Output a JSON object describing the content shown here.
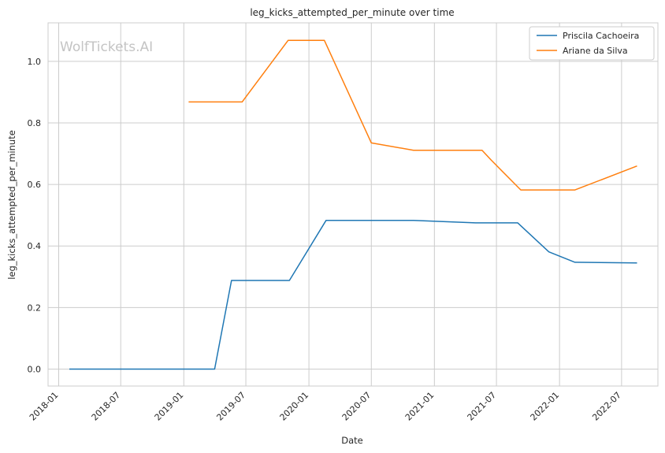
{
  "chart_data": {
    "type": "line",
    "title": "leg_kicks_attempted_per_minute over time",
    "xlabel": "Date",
    "ylabel": "leg_kicks_attempted_per_minute",
    "watermark": "WolfTickets.AI",
    "x_ticks": [
      "2018-01",
      "2018-07",
      "2019-01",
      "2019-07",
      "2020-01",
      "2020-07",
      "2021-01",
      "2021-07",
      "2022-01",
      "2022-07"
    ],
    "y_ticks": [
      "0.0",
      "0.2",
      "0.4",
      "0.6",
      "0.8",
      "1.0"
    ],
    "xlim": [
      "2017-12-01",
      "2022-10-15"
    ],
    "ylim": [
      -0.055,
      1.125
    ],
    "grid": true,
    "legend_position": "top-right",
    "series": [
      {
        "name": "Priscila Cachoeira",
        "color": "#1f77b4",
        "points": [
          [
            "2018-02-01",
            0.0
          ],
          [
            "2019-04-01",
            0.0
          ],
          [
            "2019-05-20",
            0.288
          ],
          [
            "2019-11-05",
            0.288
          ],
          [
            "2020-02-20",
            0.483
          ],
          [
            "2020-11-01",
            0.483
          ],
          [
            "2021-05-01",
            0.475
          ],
          [
            "2021-09-01",
            0.475
          ],
          [
            "2021-12-01",
            0.381
          ],
          [
            "2022-02-15",
            0.347
          ],
          [
            "2022-08-15",
            0.345
          ]
        ]
      },
      {
        "name": "Ariane da Silva",
        "color": "#ff7f0e",
        "points": [
          [
            "2019-01-15",
            0.868
          ],
          [
            "2019-06-20",
            0.868
          ],
          [
            "2019-11-01",
            1.068
          ],
          [
            "2020-02-15",
            1.068
          ],
          [
            "2020-07-01",
            0.735
          ],
          [
            "2020-11-01",
            0.711
          ],
          [
            "2021-05-20",
            0.711
          ],
          [
            "2021-06-15",
            0.68
          ],
          [
            "2021-09-10",
            0.582
          ],
          [
            "2022-02-15",
            0.582
          ],
          [
            "2022-08-15",
            0.66
          ]
        ]
      }
    ]
  }
}
